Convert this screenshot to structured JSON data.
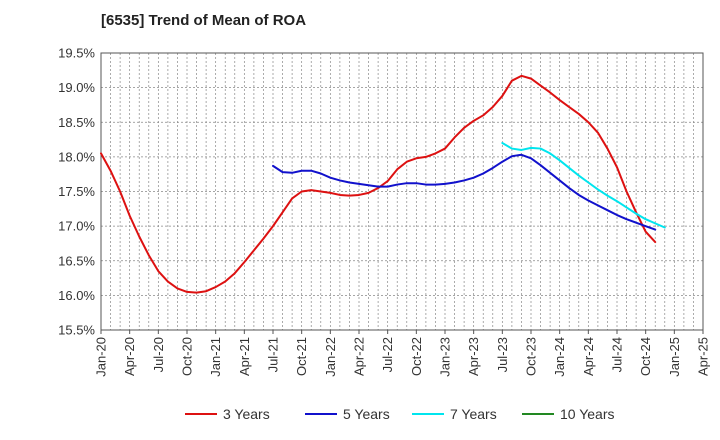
{
  "chart_data": {
    "type": "line",
    "title": "[6535]  Trend of Mean of ROA",
    "xlabel": "",
    "ylabel": "",
    "ylim": [
      15.5,
      19.5
    ],
    "yticks": [
      "15.5%",
      "16.0%",
      "16.5%",
      "17.0%",
      "17.5%",
      "18.0%",
      "18.5%",
      "19.0%",
      "19.5%"
    ],
    "ytick_values": [
      15.5,
      16.0,
      16.5,
      17.0,
      17.5,
      18.0,
      18.5,
      19.0,
      19.5
    ],
    "xticks": [
      "Jan-20",
      "Apr-20",
      "Jul-20",
      "Oct-20",
      "Jan-21",
      "Apr-21",
      "Jul-21",
      "Oct-21",
      "Jan-22",
      "Apr-22",
      "Jul-22",
      "Oct-22",
      "Jan-23",
      "Apr-23",
      "Jul-23",
      "Oct-23",
      "Jan-24",
      "Apr-24",
      "Jul-24",
      "Oct-24",
      "Jan-25",
      "Apr-25"
    ],
    "x_unit": "month index from Jan-20",
    "grid": true,
    "legend_position": "bottom",
    "series": [
      {
        "name": "3 Years",
        "color": "#dd1111",
        "points": [
          [
            0,
            18.05
          ],
          [
            1,
            17.8
          ],
          [
            2,
            17.5
          ],
          [
            3,
            17.15
          ],
          [
            4,
            16.85
          ],
          [
            5,
            16.58
          ],
          [
            6,
            16.35
          ],
          [
            7,
            16.2
          ],
          [
            8,
            16.1
          ],
          [
            9,
            16.05
          ],
          [
            10,
            16.04
          ],
          [
            11,
            16.06
          ],
          [
            12,
            16.12
          ],
          [
            13,
            16.2
          ],
          [
            14,
            16.32
          ],
          [
            15,
            16.48
          ],
          [
            16,
            16.65
          ],
          [
            17,
            16.82
          ],
          [
            18,
            17.0
          ],
          [
            19,
            17.2
          ],
          [
            20,
            17.4
          ],
          [
            21,
            17.5
          ],
          [
            22,
            17.52
          ],
          [
            23,
            17.5
          ],
          [
            24,
            17.48
          ],
          [
            25,
            17.45
          ],
          [
            26,
            17.44
          ],
          [
            27,
            17.45
          ],
          [
            28,
            17.48
          ],
          [
            29,
            17.55
          ],
          [
            30,
            17.65
          ],
          [
            31,
            17.82
          ],
          [
            32,
            17.93
          ],
          [
            33,
            17.98
          ],
          [
            34,
            18.0
          ],
          [
            35,
            18.05
          ],
          [
            36,
            18.12
          ],
          [
            37,
            18.28
          ],
          [
            38,
            18.42
          ],
          [
            39,
            18.52
          ],
          [
            40,
            18.6
          ],
          [
            41,
            18.72
          ],
          [
            42,
            18.88
          ],
          [
            43,
            19.1
          ],
          [
            44,
            19.17
          ],
          [
            45,
            19.13
          ],
          [
            46,
            19.03
          ],
          [
            47,
            18.93
          ],
          [
            48,
            18.82
          ],
          [
            49,
            18.72
          ],
          [
            50,
            18.62
          ],
          [
            51,
            18.5
          ],
          [
            52,
            18.35
          ],
          [
            53,
            18.12
          ],
          [
            54,
            17.85
          ],
          [
            55,
            17.5
          ],
          [
            56,
            17.2
          ],
          [
            57,
            16.92
          ],
          [
            58,
            16.77
          ]
        ]
      },
      {
        "name": "5 Years",
        "color": "#1111cc",
        "points": [
          [
            18,
            17.87
          ],
          [
            19,
            17.78
          ],
          [
            20,
            17.77
          ],
          [
            21,
            17.8
          ],
          [
            22,
            17.8
          ],
          [
            23,
            17.76
          ],
          [
            24,
            17.7
          ],
          [
            25,
            17.66
          ],
          [
            26,
            17.63
          ],
          [
            27,
            17.61
          ],
          [
            28,
            17.59
          ],
          [
            29,
            17.57
          ],
          [
            30,
            17.57
          ],
          [
            31,
            17.6
          ],
          [
            32,
            17.62
          ],
          [
            33,
            17.62
          ],
          [
            34,
            17.6
          ],
          [
            35,
            17.6
          ],
          [
            36,
            17.61
          ],
          [
            37,
            17.63
          ],
          [
            38,
            17.66
          ],
          [
            39,
            17.7
          ],
          [
            40,
            17.76
          ],
          [
            41,
            17.84
          ],
          [
            42,
            17.93
          ],
          [
            43,
            18.01
          ],
          [
            44,
            18.03
          ],
          [
            45,
            17.98
          ],
          [
            46,
            17.88
          ],
          [
            47,
            17.77
          ],
          [
            48,
            17.66
          ],
          [
            49,
            17.55
          ],
          [
            50,
            17.45
          ],
          [
            51,
            17.37
          ],
          [
            52,
            17.3
          ],
          [
            53,
            17.23
          ],
          [
            54,
            17.16
          ],
          [
            55,
            17.1
          ],
          [
            56,
            17.05
          ],
          [
            57,
            17.0
          ],
          [
            58,
            16.95
          ]
        ]
      },
      {
        "name": "7 Years",
        "color": "#00e5ee",
        "points": [
          [
            42,
            18.2
          ],
          [
            43,
            18.12
          ],
          [
            44,
            18.1
          ],
          [
            45,
            18.13
          ],
          [
            46,
            18.12
          ],
          [
            47,
            18.05
          ],
          [
            48,
            17.95
          ],
          [
            49,
            17.84
          ],
          [
            50,
            17.73
          ],
          [
            51,
            17.63
          ],
          [
            52,
            17.53
          ],
          [
            53,
            17.44
          ],
          [
            54,
            17.36
          ],
          [
            55,
            17.27
          ],
          [
            56,
            17.18
          ],
          [
            57,
            17.1
          ],
          [
            58,
            17.04
          ],
          [
            59,
            16.98
          ]
        ]
      },
      {
        "name": "10 Years",
        "color": "#228822",
        "points": []
      }
    ]
  }
}
